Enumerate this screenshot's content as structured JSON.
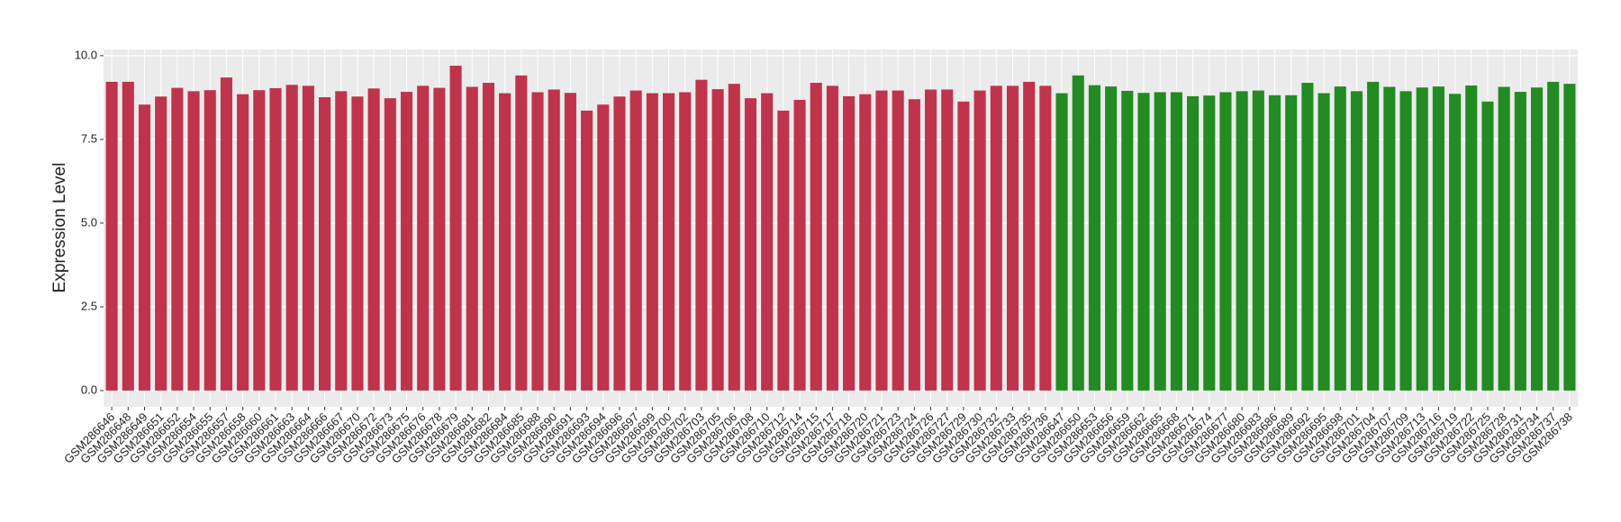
{
  "chart_data": {
    "type": "bar",
    "y_label": "Expression Level",
    "categories": [
      "GSM286646",
      "GSM286648",
      "GSM286649",
      "GSM286651",
      "GSM286652",
      "GSM286654",
      "GSM286655",
      "GSM286657",
      "GSM286658",
      "GSM286660",
      "GSM286661",
      "GSM286663",
      "GSM286664",
      "GSM286666",
      "GSM286667",
      "GSM286670",
      "GSM286672",
      "GSM286673",
      "GSM286675",
      "GSM286676",
      "GSM286678",
      "GSM286679",
      "GSM286681",
      "GSM286682",
      "GSM286684",
      "GSM286685",
      "GSM286688",
      "GSM286690",
      "GSM286691",
      "GSM286693",
      "GSM286694",
      "GSM286696",
      "GSM286697",
      "GSM286699",
      "GSM286700",
      "GSM286702",
      "GSM286703",
      "GSM286705",
      "GSM286706",
      "GSM286708",
      "GSM286710",
      "GSM286712",
      "GSM286714",
      "GSM286715",
      "GSM286717",
      "GSM286718",
      "GSM286720",
      "GSM286721",
      "GSM286723",
      "GSM286724",
      "GSM286726",
      "GSM286727",
      "GSM286729",
      "GSM286730",
      "GSM286732",
      "GSM286733",
      "GSM286735",
      "GSM286736",
      "GSM286647",
      "GSM286650",
      "GSM286653",
      "GSM286656",
      "GSM286659",
      "GSM286662",
      "GSM286665",
      "GSM286668",
      "GSM286671",
      "GSM286674",
      "GSM286677",
      "GSM286680",
      "GSM286683",
      "GSM286686",
      "GSM286689",
      "GSM286692",
      "GSM286695",
      "GSM286698",
      "GSM286701",
      "GSM286704",
      "GSM286707",
      "GSM286709",
      "GSM286713",
      "GSM286716",
      "GSM286719",
      "GSM286722",
      "GSM286725",
      "GSM286728",
      "GSM286731",
      "GSM286734",
      "GSM286737",
      "GSM286738"
    ],
    "values": [
      9.22,
      9.22,
      8.54,
      8.78,
      9.04,
      8.94,
      8.97,
      9.35,
      8.85,
      8.97,
      9.03,
      9.13,
      9.1,
      8.76,
      8.94,
      8.78,
      9.02,
      8.73,
      8.92,
      9.1,
      9.04,
      9.7,
      9.07,
      9.19,
      8.88,
      9.41,
      8.91,
      8.99,
      8.89,
      8.36,
      8.54,
      8.78,
      8.96,
      8.88,
      8.88,
      8.91,
      9.28,
      9.0,
      9.16,
      8.73,
      8.88,
      8.36,
      8.68,
      9.19,
      9.1,
      8.79,
      8.85,
      8.96,
      8.96,
      8.7,
      8.99,
      8.99,
      8.63,
      8.96,
      9.1,
      9.1,
      9.22,
      9.1,
      8.88,
      9.41,
      9.12,
      9.08,
      8.95,
      8.89,
      8.91,
      8.91,
      8.79,
      8.81,
      8.91,
      8.94,
      8.96,
      8.82,
      8.82,
      9.19,
      8.88,
      9.08,
      8.94,
      9.22,
      9.07,
      8.94,
      9.05,
      9.08,
      8.86,
      9.11,
      8.63,
      9.07,
      8.92,
      9.05,
      9.22,
      9.16
    ],
    "colors": [
      "#c0334d",
      "#c0334d",
      "#c0334d",
      "#c0334d",
      "#c0334d",
      "#c0334d",
      "#c0334d",
      "#c0334d",
      "#c0334d",
      "#c0334d",
      "#c0334d",
      "#c0334d",
      "#c0334d",
      "#c0334d",
      "#c0334d",
      "#c0334d",
      "#c0334d",
      "#c0334d",
      "#c0334d",
      "#c0334d",
      "#c0334d",
      "#c0334d",
      "#c0334d",
      "#c0334d",
      "#c0334d",
      "#c0334d",
      "#c0334d",
      "#c0334d",
      "#c0334d",
      "#c0334d",
      "#c0334d",
      "#c0334d",
      "#c0334d",
      "#c0334d",
      "#c0334d",
      "#c0334d",
      "#c0334d",
      "#c0334d",
      "#c0334d",
      "#c0334d",
      "#c0334d",
      "#c0334d",
      "#c0334d",
      "#c0334d",
      "#c0334d",
      "#c0334d",
      "#c0334d",
      "#c0334d",
      "#c0334d",
      "#c0334d",
      "#c0334d",
      "#c0334d",
      "#c0334d",
      "#c0334d",
      "#c0334d",
      "#c0334d",
      "#c0334d",
      "#c0334d",
      "#228b22",
      "#228b22",
      "#228b22",
      "#228b22",
      "#228b22",
      "#228b22",
      "#228b22",
      "#228b22",
      "#228b22",
      "#228b22",
      "#228b22",
      "#228b22",
      "#228b22",
      "#228b22",
      "#228b22",
      "#228b22",
      "#228b22",
      "#228b22",
      "#228b22",
      "#228b22",
      "#228b22",
      "#228b22",
      "#228b22",
      "#228b22",
      "#228b22",
      "#228b22",
      "#228b22",
      "#228b22",
      "#228b22",
      "#228b22",
      "#228b22",
      "#228b22"
    ],
    "ylim": [
      -0.485,
      10.185
    ],
    "yticks": [
      {
        "value": 0,
        "label": "0.0"
      },
      2.5,
      {
        "value": 5,
        "label": "5.0"
      },
      7.5,
      {
        "value": 10,
        "label": "10.0"
      }
    ],
    "grid": true
  }
}
